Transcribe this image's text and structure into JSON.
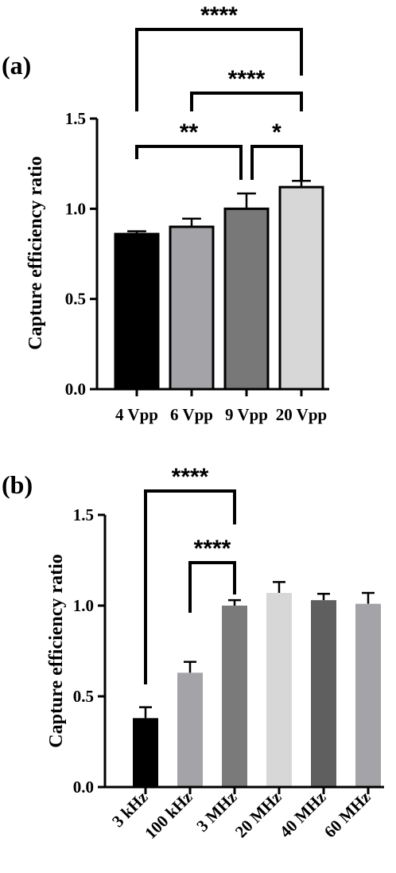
{
  "chart_data": [
    {
      "type": "bar",
      "panel": "(a)",
      "categories": [
        "4 Vpp",
        "6 Vpp",
        "9 Vpp",
        "20 Vpp"
      ],
      "values": [
        0.86,
        0.9,
        1.0,
        1.12
      ],
      "errors": [
        0.015,
        0.045,
        0.085,
        0.035
      ],
      "colors": [
        "#000000",
        "#a3a3a8",
        "#787878",
        "#d7d7d7"
      ],
      "ylabel": "Capture efficiency ratio",
      "ylim": [
        0,
        1.5
      ],
      "yticks": [
        "0.0",
        "0.5",
        "1.0",
        "1.5"
      ],
      "significance": [
        {
          "from": 0,
          "to": 3,
          "label": "****"
        },
        {
          "from": 1,
          "to": 3,
          "label": "****"
        },
        {
          "from": 0,
          "to": 2,
          "label": "**"
        },
        {
          "from": 2,
          "to": 3,
          "label": "*"
        }
      ]
    },
    {
      "type": "bar",
      "panel": "(b)",
      "categories": [
        "3 kHz",
        "100 kHz",
        "3 MHz",
        "20 MHz",
        "40 MHz",
        "60 MHz"
      ],
      "values": [
        0.38,
        0.63,
        1.0,
        1.07,
        1.03,
        1.01
      ],
      "errors": [
        0.06,
        0.06,
        0.03,
        0.06,
        0.035,
        0.06
      ],
      "colors": [
        "#000000",
        "#a3a3a8",
        "#7a7a7a",
        "#d7d7d7",
        "#5f5f5f",
        "#a3a3a8"
      ],
      "ylabel": "Capture efficiency ratio",
      "ylim": [
        0,
        1.5
      ],
      "yticks": [
        "0.0",
        "0.5",
        "1.0",
        "1.5"
      ],
      "significance": [
        {
          "from": 0,
          "to": 2,
          "label": "****"
        },
        {
          "from": 1,
          "to": 2,
          "label": "****"
        }
      ]
    }
  ]
}
